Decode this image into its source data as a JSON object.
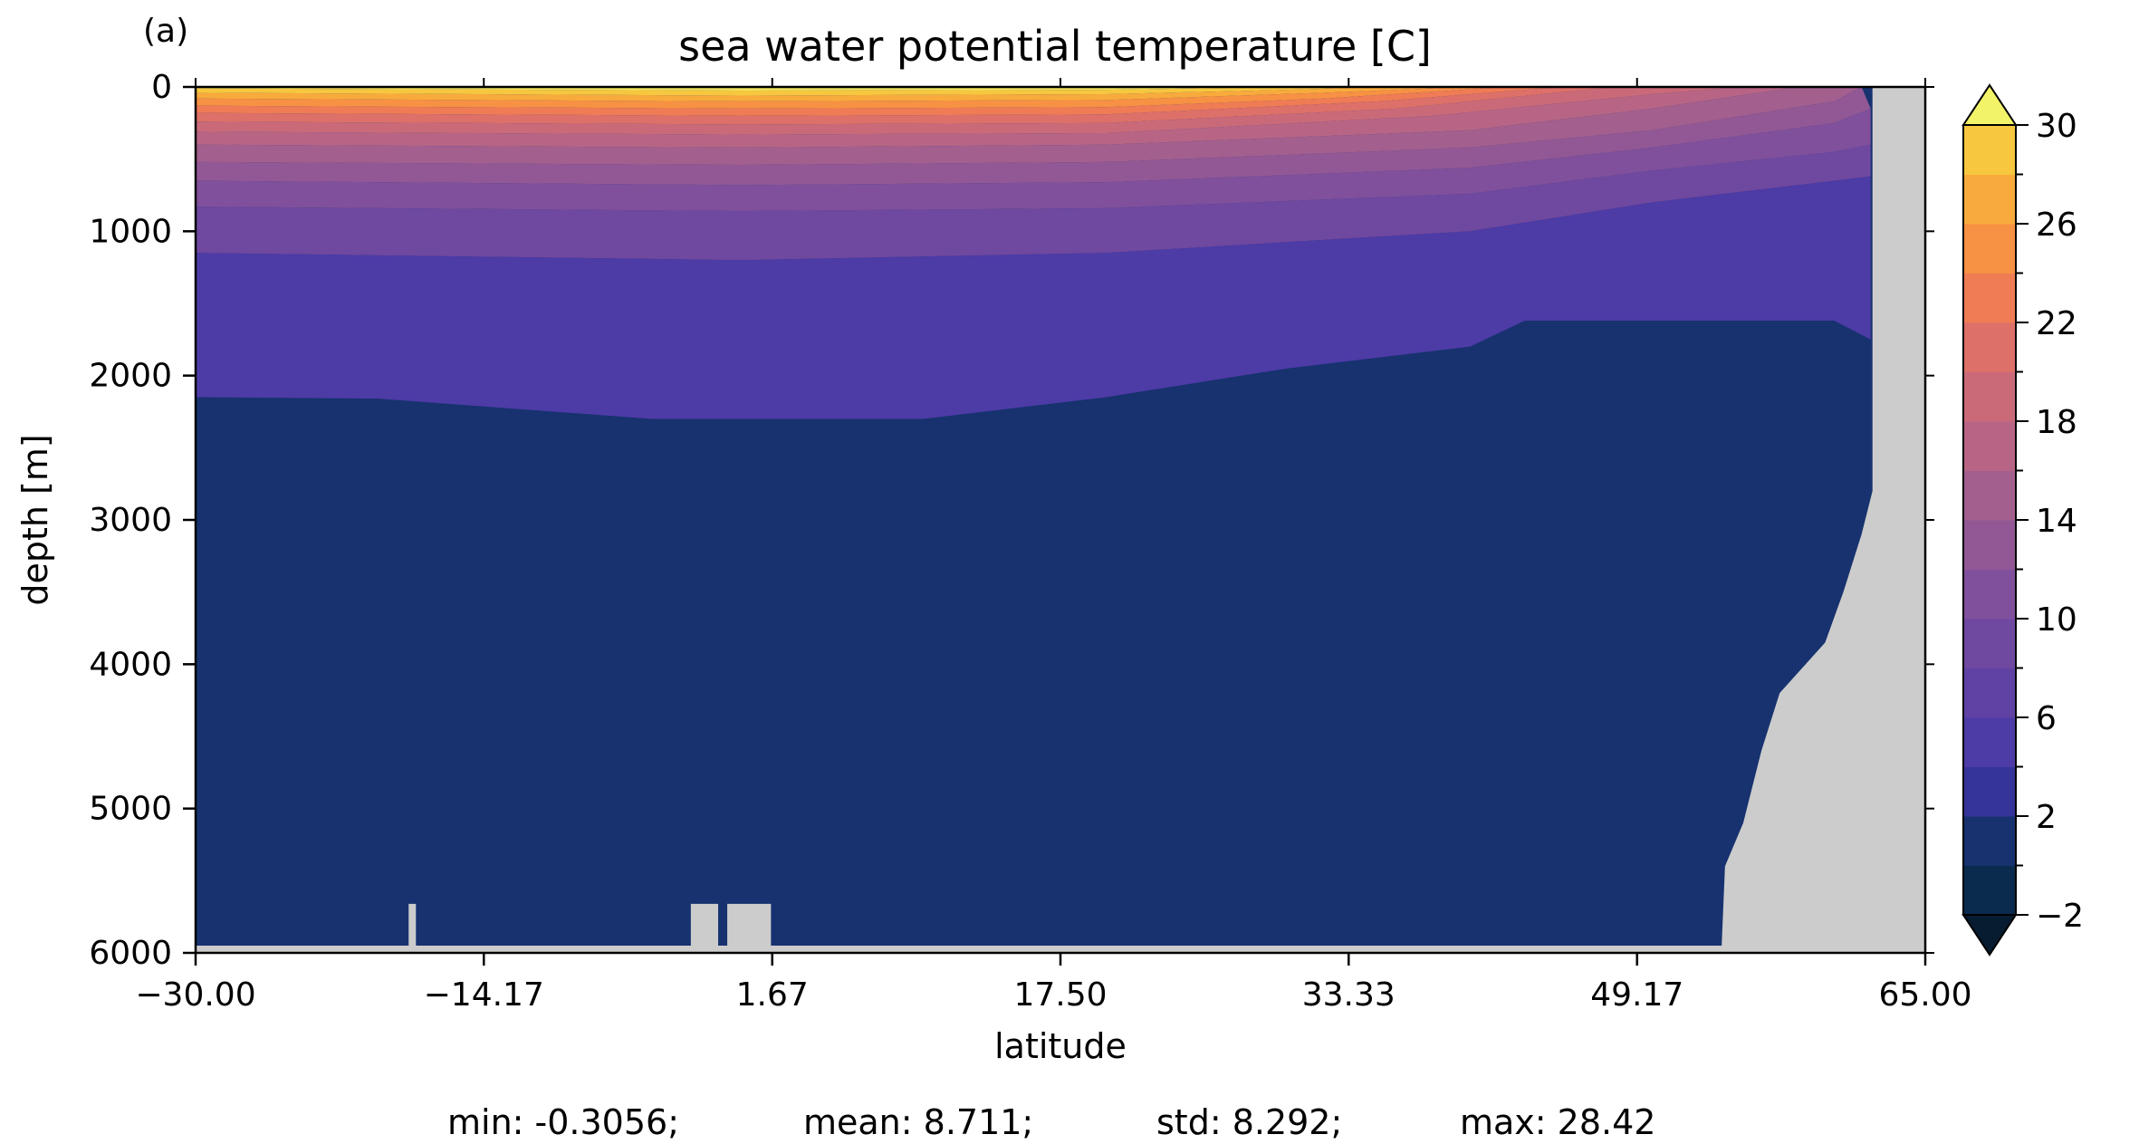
{
  "chart_data": {
    "type": "heatmap",
    "panel_label": "(a)",
    "title": "sea water potential temperature [C]",
    "xlabel": "latitude",
    "ylabel": "depth [m]",
    "xlim": [
      -30.0,
      65.0
    ],
    "ylim": [
      6000,
      0
    ],
    "y_inverted": true,
    "x_ticks": [
      "−30.00",
      "−14.17",
      "1.67",
      "17.50",
      "33.33",
      "49.17",
      "65.00"
    ],
    "x_tick_values": [
      -30.0,
      -14.17,
      1.67,
      17.5,
      33.33,
      49.17,
      65.0
    ],
    "y_ticks": [
      "0",
      "1000",
      "2000",
      "3000",
      "4000",
      "5000",
      "6000"
    ],
    "y_tick_values": [
      0,
      1000,
      2000,
      3000,
      4000,
      5000,
      6000
    ],
    "colorbar": {
      "levels": [
        -2,
        0,
        2,
        4,
        6,
        8,
        10,
        12,
        14,
        16,
        18,
        20,
        22,
        24,
        26,
        28,
        30
      ],
      "tick_labels": [
        "−2",
        "2",
        "6",
        "10",
        "14",
        "18",
        "22",
        "26",
        "30"
      ],
      "tick_values": [
        -2,
        2,
        6,
        10,
        14,
        18,
        22,
        26,
        30
      ],
      "colors": [
        "#0a2b4e",
        "#17326f",
        "#35349a",
        "#4d3ba6",
        "#5f42a4",
        "#6f48a0",
        "#80509c",
        "#925895",
        "#a35f8e",
        "#b86585",
        "#ca6a79",
        "#dd7068",
        "#ef7c54",
        "#f79143",
        "#f8ab3c",
        "#f6c73f",
        "#efe35b"
      ],
      "under_color": "#071c30",
      "over_color": "#f3f36a",
      "extend": "both"
    },
    "land_color": "#cccccc",
    "stats": {
      "min": "min: -0.3056;",
      "mean": "mean: 8.711;",
      "std": "std: 8.292;",
      "max": "max: 28.42"
    },
    "bands": [
      {
        "level_index": 16,
        "top": [
          [
            -30,
            0
          ],
          [
            65,
            0
          ]
        ],
        "bottom": [
          [
            -30,
            10
          ],
          [
            0,
            25
          ],
          [
            20,
            20
          ],
          [
            30,
            0
          ],
          [
            65,
            0
          ]
        ]
      },
      {
        "level_index": 15,
        "top": [
          [
            -30,
            10
          ],
          [
            0,
            25
          ],
          [
            20,
            20
          ],
          [
            30,
            0
          ]
        ],
        "bottom": [
          [
            -30,
            40
          ],
          [
            0,
            60
          ],
          [
            20,
            50
          ],
          [
            30,
            20
          ],
          [
            35,
            0
          ]
        ]
      },
      {
        "level_index": 14,
        "top": [
          [
            -30,
            40
          ],
          [
            0,
            60
          ],
          [
            20,
            50
          ],
          [
            30,
            20
          ],
          [
            35,
            0
          ]
        ],
        "bottom": [
          [
            -30,
            80
          ],
          [
            0,
            100
          ],
          [
            20,
            90
          ],
          [
            32,
            40
          ],
          [
            40,
            0
          ]
        ]
      },
      {
        "level_index": 13,
        "top": [
          [
            -30,
            80
          ],
          [
            0,
            100
          ],
          [
            20,
            90
          ],
          [
            32,
            40
          ],
          [
            40,
            0
          ]
        ],
        "bottom": [
          [
            -30,
            130
          ],
          [
            0,
            150
          ],
          [
            20,
            140
          ],
          [
            32,
            80
          ],
          [
            42,
            0
          ]
        ]
      },
      {
        "level_index": 12,
        "top": [
          [
            -30,
            130
          ],
          [
            0,
            150
          ],
          [
            20,
            140
          ],
          [
            32,
            80
          ],
          [
            42,
            0
          ]
        ],
        "bottom": [
          [
            -30,
            180
          ],
          [
            0,
            200
          ],
          [
            20,
            190
          ],
          [
            35,
            100
          ],
          [
            45,
            0
          ]
        ]
      },
      {
        "level_index": 11,
        "top": [
          [
            -30,
            180
          ],
          [
            0,
            200
          ],
          [
            20,
            190
          ],
          [
            35,
            100
          ],
          [
            45,
            0
          ]
        ],
        "bottom": [
          [
            -30,
            240
          ],
          [
            0,
            260
          ],
          [
            20,
            250
          ],
          [
            36,
            150
          ],
          [
            48,
            0
          ]
        ]
      },
      {
        "level_index": 10,
        "top": [
          [
            -30,
            240
          ],
          [
            0,
            260
          ],
          [
            20,
            250
          ],
          [
            36,
            150
          ],
          [
            48,
            0
          ]
        ],
        "bottom": [
          [
            -30,
            310
          ],
          [
            0,
            330
          ],
          [
            20,
            320
          ],
          [
            38,
            200
          ],
          [
            50,
            50
          ],
          [
            55,
            0
          ]
        ]
      },
      {
        "level_index": 9,
        "top": [
          [
            -30,
            310
          ],
          [
            0,
            330
          ],
          [
            20,
            320
          ],
          [
            38,
            200
          ],
          [
            50,
            50
          ],
          [
            55,
            0
          ]
        ],
        "bottom": [
          [
            -30,
            400
          ],
          [
            0,
            420
          ],
          [
            20,
            400
          ],
          [
            40,
            300
          ],
          [
            50,
            150
          ],
          [
            58,
            0
          ]
        ]
      },
      {
        "level_index": 8,
        "top": [
          [
            -30,
            400
          ],
          [
            0,
            420
          ],
          [
            20,
            400
          ],
          [
            40,
            300
          ],
          [
            50,
            150
          ],
          [
            58,
            0
          ]
        ],
        "bottom": [
          [
            -30,
            520
          ],
          [
            0,
            540
          ],
          [
            20,
            520
          ],
          [
            40,
            420
          ],
          [
            50,
            300
          ],
          [
            60,
            100
          ],
          [
            61.5,
            0
          ]
        ]
      },
      {
        "level_index": 7,
        "top": [
          [
            -30,
            520
          ],
          [
            0,
            540
          ],
          [
            20,
            520
          ],
          [
            40,
            420
          ],
          [
            50,
            300
          ],
          [
            60,
            100
          ],
          [
            61.5,
            0
          ]
        ],
        "bottom": [
          [
            -30,
            650
          ],
          [
            0,
            680
          ],
          [
            20,
            660
          ],
          [
            40,
            560
          ],
          [
            50,
            420
          ],
          [
            60,
            250
          ],
          [
            62,
            150
          ]
        ]
      },
      {
        "level_index": 6,
        "top": [
          [
            -30,
            650
          ],
          [
            0,
            680
          ],
          [
            20,
            660
          ],
          [
            40,
            560
          ],
          [
            50,
            420
          ],
          [
            60,
            250
          ],
          [
            62,
            150
          ]
        ],
        "bottom": [
          [
            -30,
            830
          ],
          [
            0,
            860
          ],
          [
            20,
            840
          ],
          [
            40,
            740
          ],
          [
            50,
            580
          ],
          [
            60,
            450
          ],
          [
            62,
            400
          ]
        ]
      },
      {
        "level_index": 5,
        "top": [
          [
            -30,
            830
          ],
          [
            0,
            860
          ],
          [
            20,
            840
          ],
          [
            40,
            740
          ],
          [
            50,
            580
          ],
          [
            60,
            450
          ],
          [
            62,
            400
          ]
        ],
        "bottom": [
          [
            -30,
            1150
          ],
          [
            0,
            1200
          ],
          [
            20,
            1150
          ],
          [
            40,
            1000
          ],
          [
            50,
            800
          ],
          [
            60,
            650
          ],
          [
            62,
            620
          ]
        ]
      },
      {
        "level_index": 3,
        "top": [
          [
            -30,
            1150
          ],
          [
            0,
            1200
          ],
          [
            20,
            1150
          ],
          [
            40,
            1000
          ],
          [
            50,
            800
          ],
          [
            60,
            650
          ],
          [
            62,
            620
          ]
        ],
        "bottom": [
          [
            -30,
            2150
          ],
          [
            -20,
            2160
          ],
          [
            -5,
            2300
          ],
          [
            5,
            2300
          ],
          [
            10,
            2300
          ],
          [
            20,
            2150
          ],
          [
            30,
            1950
          ],
          [
            40,
            1800
          ],
          [
            43,
            1620
          ],
          [
            60,
            1620
          ],
          [
            62,
            1750
          ]
        ]
      },
      {
        "level_index": 1,
        "top": [
          [
            -30,
            2150
          ],
          [
            -20,
            2160
          ],
          [
            -5,
            2300
          ],
          [
            5,
            2300
          ],
          [
            10,
            2300
          ],
          [
            20,
            2150
          ],
          [
            30,
            1950
          ],
          [
            40,
            1800
          ],
          [
            43,
            1620
          ],
          [
            60,
            1620
          ],
          [
            62,
            1750
          ]
        ],
        "bottom": [
          [
            -30,
            5950
          ],
          [
            52,
            5950
          ],
          [
            62,
            5950
          ]
        ]
      }
    ],
    "land": [
      [
        [
          62.1,
          0
        ],
        [
          65,
          0
        ],
        [
          65,
          6000
        ],
        [
          53.8,
          6000
        ],
        [
          54,
          5400
        ],
        [
          55,
          5100
        ],
        [
          56,
          4600
        ],
        [
          57,
          4200
        ],
        [
          59.5,
          3850
        ],
        [
          60.5,
          3500
        ],
        [
          61.5,
          3100
        ],
        [
          62.1,
          2800
        ]
      ],
      [
        [
          -30,
          5950
        ],
        [
          65,
          5950
        ],
        [
          65,
          6000
        ],
        [
          -30,
          6000
        ]
      ],
      [
        [
          -2.8,
          5660
        ],
        [
          -1.3,
          5660
        ],
        [
          -1.3,
          6000
        ],
        [
          -2.8,
          6000
        ]
      ],
      [
        [
          -0.8,
          5660
        ],
        [
          1.6,
          5660
        ],
        [
          1.6,
          6000
        ],
        [
          -0.8,
          6000
        ]
      ],
      [
        [
          -18.3,
          5660
        ],
        [
          -17.9,
          5660
        ],
        [
          -17.9,
          6000
        ],
        [
          -18.3,
          6000
        ]
      ]
    ]
  }
}
